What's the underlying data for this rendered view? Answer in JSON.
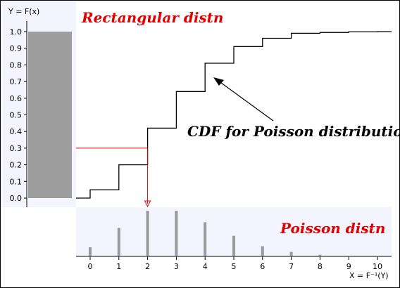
{
  "chart_data": {
    "type": "line",
    "y_axis_label": "Y = F(x)",
    "x_axis_label": "X = F⁻¹(Y)",
    "y_ticks": [
      "0.0",
      "0.1",
      "0.2",
      "0.3",
      "0.4",
      "0.5",
      "0.6",
      "0.7",
      "0.8",
      "0.9",
      "1.0"
    ],
    "x_ticks": [
      "0",
      "1",
      "2",
      "3",
      "4",
      "5",
      "6",
      "7",
      "8",
      "9",
      "10"
    ],
    "ylim": [
      0,
      1
    ],
    "xlim": [
      -0.5,
      10.5
    ],
    "rectangular": {
      "label": "Rectangular distn",
      "density": 1.0,
      "range": [
        0,
        1
      ]
    },
    "poisson": {
      "label": "Poisson distn",
      "x": [
        0,
        1,
        2,
        3,
        4,
        5,
        6,
        7,
        8,
        9,
        10
      ],
      "probabilities": [
        0.045,
        0.14,
        0.224,
        0.224,
        0.168,
        0.101,
        0.05,
        0.022,
        0.008,
        0.003,
        0.001
      ]
    },
    "cdf": {
      "label": "CDF for Poisson distribution",
      "x": [
        0,
        1,
        2,
        3,
        4,
        5,
        6,
        7,
        8,
        9,
        10
      ],
      "y": [
        0.05,
        0.2,
        0.42,
        0.64,
        0.81,
        0.91,
        0.96,
        0.99,
        0.995,
        0.999,
        1.0
      ]
    },
    "example": {
      "y": 0.3,
      "x": 2
    },
    "colors": {
      "rect_fill": "#9e9e9e",
      "panel_bg": "#f4f4fe",
      "bar_fill": "#9a9a9a",
      "cdf_line": "#000000",
      "guide_line": "#e00000",
      "label_red": "#e00000"
    }
  }
}
